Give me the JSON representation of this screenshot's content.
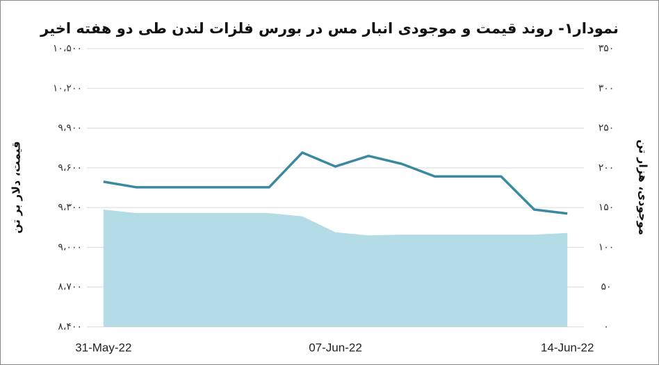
{
  "chart_data": {
    "type": "line",
    "title": "نمودار۱- روند قیمت و موجودی انبار مس در بورس فلزات لندن طی دو هفته اخیر",
    "y_label": "قیمت، دلار بر تن",
    "y2_label": "موجودی، هزار تن",
    "categories": [
      "31-May-22",
      null,
      null,
      null,
      null,
      null,
      null,
      "07-Jun-22",
      null,
      null,
      null,
      null,
      null,
      null,
      "14-Jun-22"
    ],
    "series": [
      {
        "type": "area",
        "axis": "y2",
        "color": "#b4dce6",
        "values": [
          147.5,
          143,
          143,
          143,
          143,
          143,
          139,
          119,
          115,
          116,
          116,
          116,
          116,
          116,
          118
        ]
      },
      {
        "type": "line",
        "axis": "y",
        "color": "#3b88a1",
        "values": [
          9495,
          9453,
          9453,
          9453,
          9453,
          9453,
          9715,
          9610,
          9690,
          9630,
          9535,
          9535,
          9535,
          9285,
          9255
        ]
      }
    ],
    "ylim": [
      8400,
      10500
    ],
    "yticks": [
      {
        "value": 8400,
        "label": "۸،۴۰۰"
      },
      {
        "value": 8700,
        "label": "۸،۷۰۰"
      },
      {
        "value": 9000,
        "label": "۹،۰۰۰"
      },
      {
        "value": 9300,
        "label": "۹،۳۰۰"
      },
      {
        "value": 9600,
        "label": "۹،۶۰۰"
      },
      {
        "value": 9900,
        "label": "۹،۹۰۰"
      },
      {
        "value": 10200,
        "label": "۱۰،۲۰۰"
      },
      {
        "value": 10500,
        "label": "۱۰،۵۰۰"
      }
    ],
    "y2lim": [
      0,
      350
    ],
    "y2ticks": [
      {
        "value": 0,
        "label": "۰"
      },
      {
        "value": 50,
        "label": "۵۰"
      },
      {
        "value": 100,
        "label": "۱۰۰"
      },
      {
        "value": 150,
        "label": "۱۵۰"
      },
      {
        "value": 200,
        "label": "۲۰۰"
      },
      {
        "value": 250,
        "label": "۲۵۰"
      },
      {
        "value": 300,
        "label": "۳۰۰"
      },
      {
        "value": 350,
        "label": "۳۵۰"
      }
    ],
    "grid": true
  }
}
